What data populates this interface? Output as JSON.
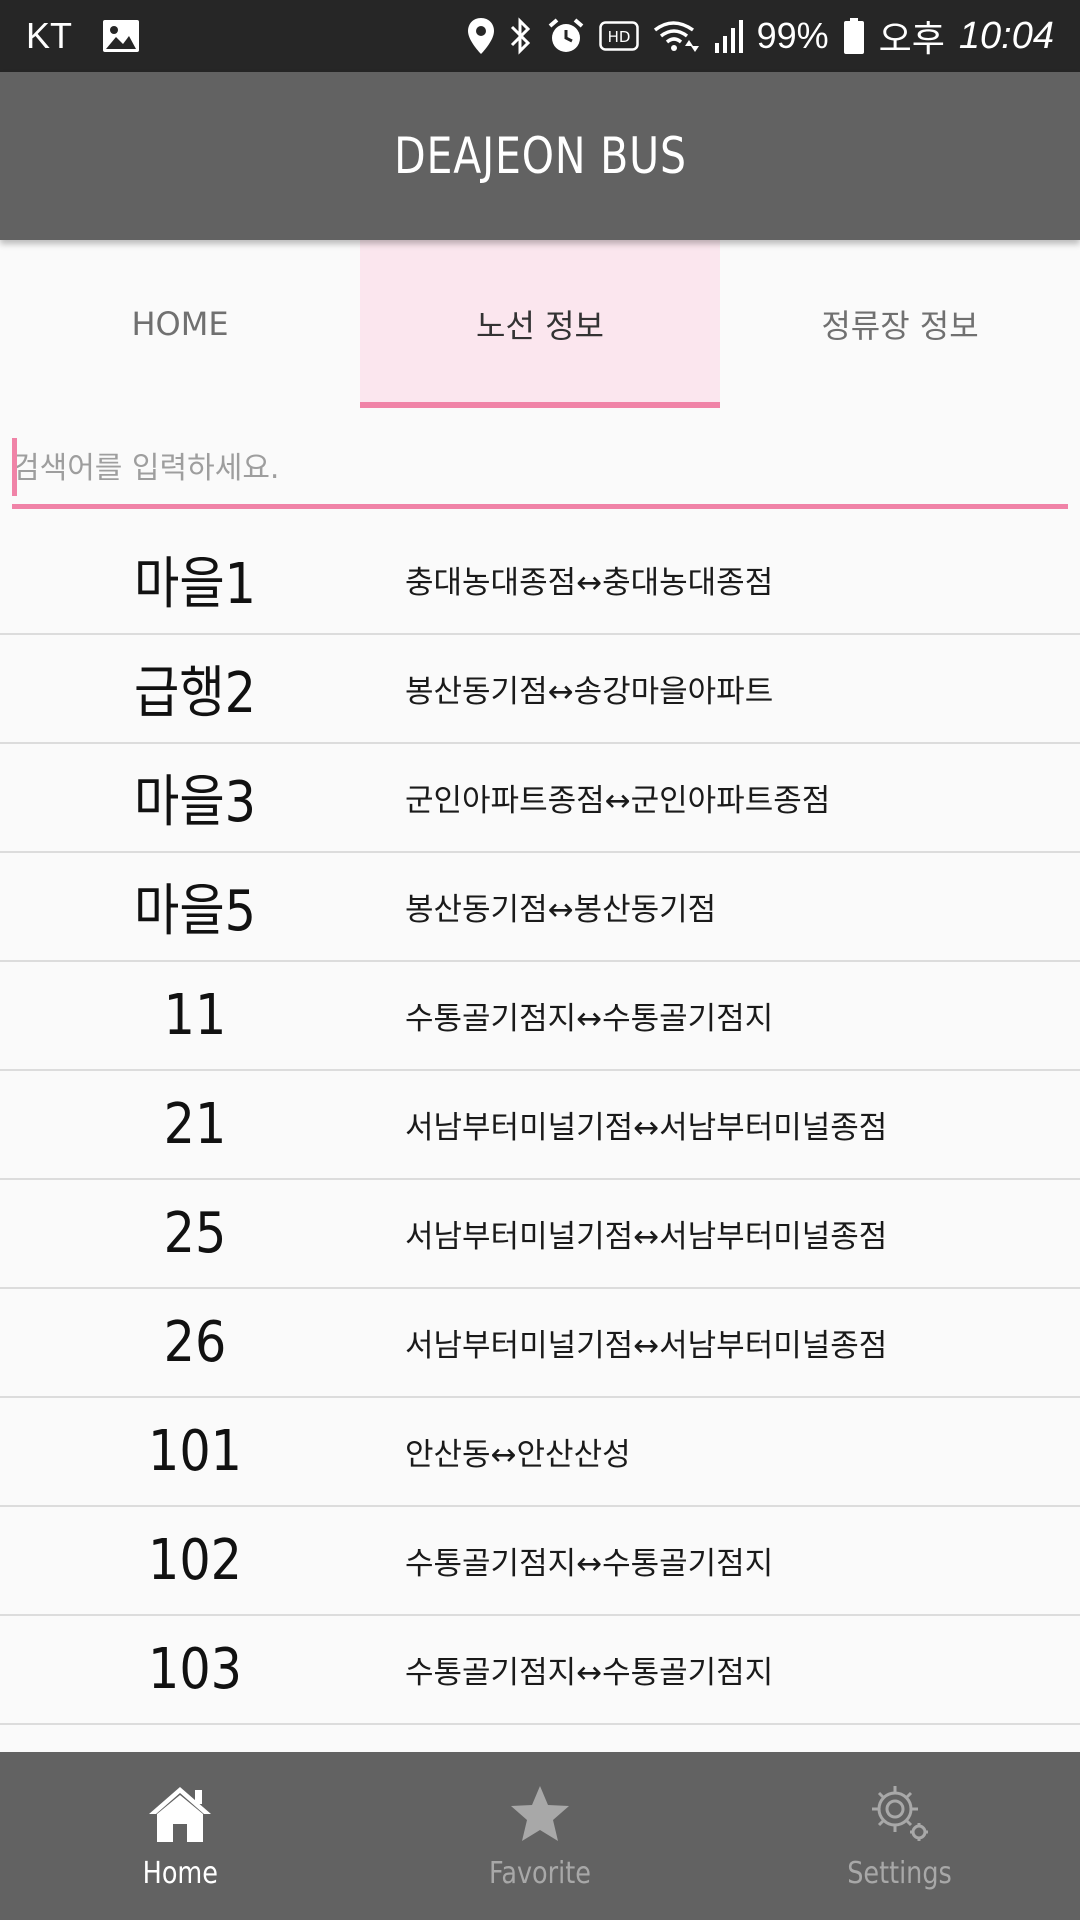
{
  "status_bar": {
    "carrier": "KT",
    "battery": "99%",
    "ampm": "오후",
    "time": "10:04",
    "hd_label": "HD"
  },
  "app_bar": {
    "title": "DEAJEON BUS"
  },
  "tabs": [
    {
      "label": "HOME",
      "active": false
    },
    {
      "label": "노선 정보",
      "active": true
    },
    {
      "label": "정류장 정보",
      "active": false
    }
  ],
  "search": {
    "placeholder": "검색어를 입력하세요.",
    "value": ""
  },
  "routes": [
    {
      "number": "마을1",
      "description": "충대농대종점↔충대농대종점"
    },
    {
      "number": "급행2",
      "description": "봉산동기점↔송강마을아파트"
    },
    {
      "number": "마을3",
      "description": "군인아파트종점↔군인아파트종점"
    },
    {
      "number": "마을5",
      "description": "봉산동기점↔봉산동기점"
    },
    {
      "number": "11",
      "description": "수통골기점지↔수통골기점지"
    },
    {
      "number": "21",
      "description": "서남부터미널기점↔서남부터미널종점"
    },
    {
      "number": "25",
      "description": "서남부터미널기점↔서남부터미널종점"
    },
    {
      "number": "26",
      "description": "서남부터미널기점↔서남부터미널종점"
    },
    {
      "number": "101",
      "description": "안산동↔안산산성"
    },
    {
      "number": "102",
      "description": "수통골기점지↔수통골기점지"
    },
    {
      "number": "103",
      "description": "수통골기점지↔수통골기점지"
    }
  ],
  "bottom_nav": [
    {
      "label": "Home",
      "icon": "home-icon",
      "active": true
    },
    {
      "label": "Favorite",
      "icon": "star-icon",
      "active": false
    },
    {
      "label": "Settings",
      "icon": "gear-icon",
      "active": false
    }
  ],
  "colors": {
    "accent": "#f083a7",
    "active_tab_bg": "#fbe6ee",
    "bar_bg": "#626262",
    "status_bar_bg": "#262626"
  }
}
